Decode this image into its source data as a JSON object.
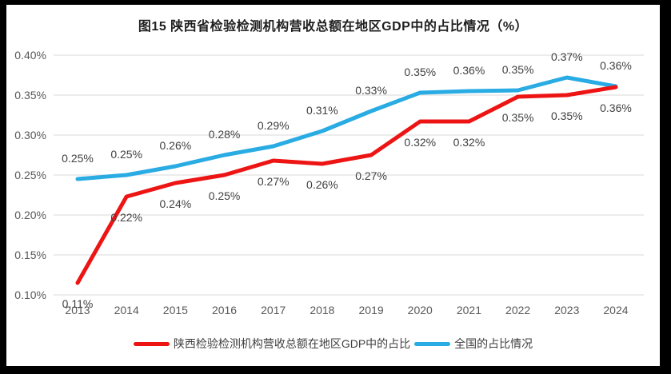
{
  "chart_data": {
    "type": "line",
    "title": "图15 陕西省检验检测机构营收总额在地区GDP中的占比情况（%）",
    "xlabel": "",
    "ylabel": "",
    "categories": [
      "2013",
      "2014",
      "2015",
      "2016",
      "2017",
      "2018",
      "2019",
      "2020",
      "2021",
      "2022",
      "2023",
      "2024"
    ],
    "y_axis": {
      "ticks": [
        "0.40%",
        "0.35%",
        "0.30%",
        "0.25%",
        "0.20%",
        "0.15%",
        "0.10%"
      ],
      "min": 0.1,
      "max": 0.4,
      "unit": "%"
    },
    "grid": true,
    "legend_position": "bottom",
    "series": [
      {
        "name": "陕西检验检测机构营收总额在地区GDP中的占比",
        "color": "#ED1414",
        "label_side": "below",
        "labels": [
          "0.11%",
          "0.22%",
          "0.24%",
          "0.25%",
          "0.27%",
          "0.26%",
          "0.27%",
          "0.32%",
          "0.32%",
          "0.35%",
          "0.35%",
          "0.36%"
        ],
        "values": [
          0.11,
          0.22,
          0.24,
          0.25,
          0.27,
          0.26,
          0.27,
          0.32,
          0.32,
          0.35,
          0.35,
          0.36
        ],
        "values_est": [
          0.115,
          0.223,
          0.24,
          0.25,
          0.268,
          0.264,
          0.275,
          0.317,
          0.317,
          0.348,
          0.35,
          0.36
        ]
      },
      {
        "name": "全国的占比情况",
        "color": "#29ABE3",
        "label_side": "above",
        "labels": [
          "0.25%",
          "0.25%",
          "0.26%",
          "0.28%",
          "0.29%",
          "0.31%",
          "0.33%",
          "0.35%",
          "0.36%",
          "0.35%",
          "0.37%",
          "0.36%"
        ],
        "values": [
          0.25,
          0.25,
          0.26,
          0.28,
          0.29,
          0.31,
          0.33,
          0.35,
          0.36,
          0.35,
          0.37,
          0.36
        ],
        "values_est": [
          0.245,
          0.25,
          0.261,
          0.275,
          0.286,
          0.305,
          0.33,
          0.353,
          0.355,
          0.356,
          0.372,
          0.361
        ]
      }
    ],
    "style": {
      "grid_color": "#D9D9D9",
      "tick_color": "#595959",
      "data_label_color": "#404040",
      "background": "#FFFFFF",
      "frame_color": "#000000"
    }
  }
}
